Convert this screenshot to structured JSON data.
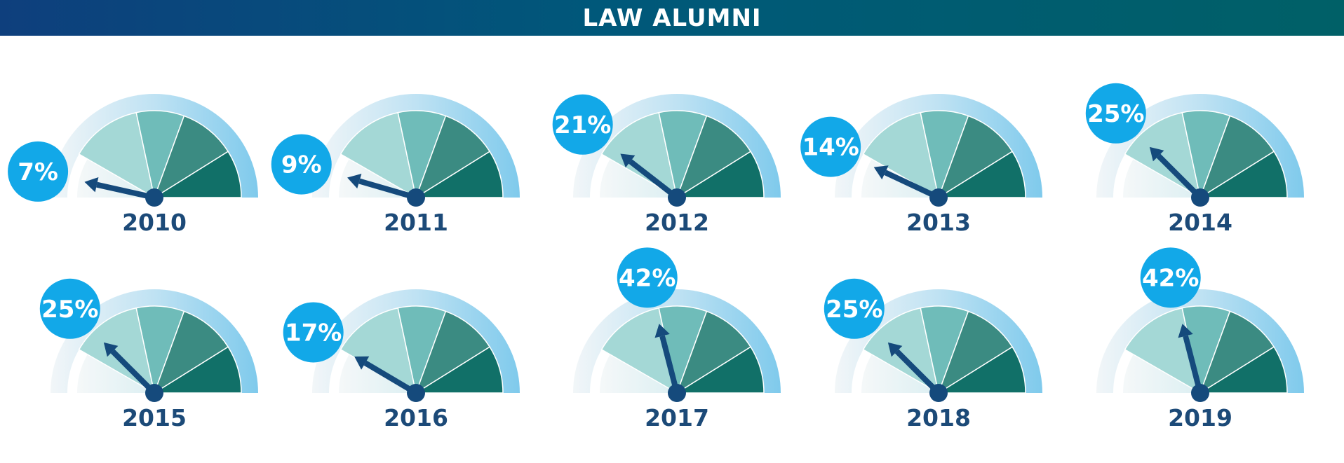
{
  "header": {
    "title": "LAW ALUMNI"
  },
  "colors": {
    "header_start": "#0e3f7d",
    "header_end": "#006067",
    "outer_ring": "#7fcaec",
    "inner_fade": "#dceff2",
    "segment_1": "#a4d8d6",
    "segment_2": "#6fbcb9",
    "segment_3": "#3b8b82",
    "segment_4": "#117068",
    "needle": "#154a7c",
    "bubble": "#12a8e8",
    "label": "#1c4a78"
  },
  "chart_data": {
    "type": "gauge",
    "title": "LAW ALUMNI",
    "scale": [
      0,
      100
    ],
    "unit": "%",
    "gauges": [
      {
        "year": "2010",
        "value": 7,
        "label": "7%"
      },
      {
        "year": "2011",
        "value": 9,
        "label": "9%"
      },
      {
        "year": "2012",
        "value": 21,
        "label": "21%"
      },
      {
        "year": "2013",
        "value": 14,
        "label": "14%"
      },
      {
        "year": "2014",
        "value": 25,
        "label": "25%"
      },
      {
        "year": "2015",
        "value": 25,
        "label": "25%"
      },
      {
        "year": "2016",
        "value": 17,
        "label": "17%"
      },
      {
        "year": "2017",
        "value": 42,
        "label": "42%"
      },
      {
        "year": "2018",
        "value": 25,
        "label": "25%"
      },
      {
        "year": "2019",
        "value": 42,
        "label": "42%"
      }
    ]
  }
}
